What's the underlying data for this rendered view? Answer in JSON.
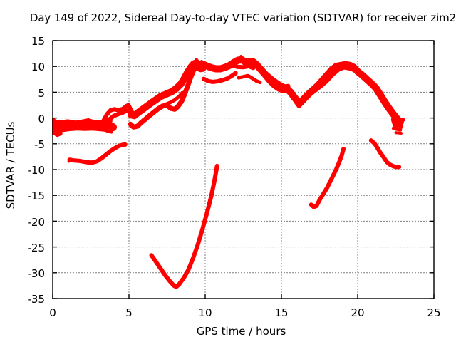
{
  "chart_data": {
    "type": "scatter",
    "title": "Day 149 of 2022, Sidereal Day-to-day VTEC variation (SDTVAR) for receiver zim2",
    "xlabel": "GPS time / hours",
    "ylabel": "SDTVAR / TECUs",
    "xlim": [
      0,
      25
    ],
    "ylim": [
      -35,
      15
    ],
    "xticks": [
      0,
      5,
      10,
      15,
      20,
      25
    ],
    "yticks": [
      15,
      10,
      5,
      0,
      -5,
      -10,
      -15,
      -20,
      -25,
      -30,
      -35
    ],
    "grid": true,
    "legend": "none",
    "point_color": "#ff0000",
    "grid_color": "#7f7f7f",
    "axis_color": "#000000",
    "series": [
      {
        "name": "band-core",
        "width": 11,
        "points": [
          [
            0,
            -1.4
          ],
          [
            0.5,
            -1.35
          ],
          [
            1,
            -1.5
          ],
          [
            1.5,
            -1.45
          ],
          [
            2,
            -1.5
          ],
          [
            2.35,
            -1.15
          ],
          [
            2.7,
            -1.5
          ],
          [
            3.1,
            -1.5
          ],
          [
            3.5,
            -1.35
          ],
          [
            3.8,
            -1.55
          ],
          [
            3.95,
            -1.8
          ]
        ]
      },
      {
        "name": "band-top-edge",
        "width": 5,
        "points": [
          [
            0,
            -0.55
          ],
          [
            0.5,
            -0.8
          ],
          [
            1,
            -0.6
          ],
          [
            1.5,
            -0.85
          ],
          [
            2,
            -0.6
          ],
          [
            2.35,
            -0.4
          ],
          [
            2.7,
            -0.75
          ],
          [
            3.1,
            -0.8
          ],
          [
            3.4,
            -0.6
          ],
          [
            3.6,
            -0.35
          ],
          [
            3.8,
            -0.6
          ]
        ]
      },
      {
        "name": "band-bottom-edge",
        "width": 5,
        "points": [
          [
            0.15,
            -2.5
          ],
          [
            0.6,
            -2.4
          ],
          [
            1.1,
            -2.2
          ],
          [
            1.6,
            -2.1
          ],
          [
            2.1,
            -2.15
          ],
          [
            2.6,
            -2.1
          ],
          [
            3.0,
            -2.2
          ],
          [
            3.4,
            -2.3
          ],
          [
            3.7,
            -2.6
          ],
          [
            3.85,
            -2.7
          ]
        ]
      },
      {
        "name": "left-edge-cluster",
        "width": 7,
        "points": [
          [
            0.04,
            -0.5
          ],
          [
            0.04,
            -2.8
          ]
        ]
      },
      {
        "name": "left-edge-drip",
        "width": 6,
        "points": [
          [
            0.12,
            -2.9
          ],
          [
            0.3,
            -3.25
          ],
          [
            0.5,
            -3.0
          ]
        ]
      },
      {
        "name": "branch-rise-a",
        "width": 6,
        "points": [
          [
            3.35,
            -0.4
          ],
          [
            3.55,
            0.7
          ],
          [
            3.8,
            1.5
          ],
          [
            4.05,
            1.7
          ],
          [
            4.3,
            1.5
          ],
          [
            4.6,
            1.75
          ],
          [
            4.85,
            2.35
          ],
          [
            4.97,
            2.5
          ],
          [
            5.1,
            1.7
          ],
          [
            5.25,
            0.85
          ],
          [
            5.35,
            0.5
          ]
        ]
      },
      {
        "name": "branch-rise-b",
        "width": 6,
        "points": [
          [
            3.5,
            -1.0
          ],
          [
            3.75,
            -0.2
          ],
          [
            4.0,
            0.4
          ],
          [
            4.3,
            0.75
          ],
          [
            4.6,
            1.05
          ],
          [
            4.85,
            1.45
          ],
          [
            5.02,
            1.3
          ]
        ]
      },
      {
        "name": "mid-strand-low",
        "width": 7,
        "points": [
          [
            5.1,
            -1.2
          ],
          [
            5.3,
            -1.75
          ],
          [
            5.55,
            -1.6
          ],
          [
            5.8,
            -0.9
          ],
          [
            6.05,
            -0.3
          ],
          [
            6.3,
            0.35
          ],
          [
            6.6,
            1.05
          ],
          [
            6.9,
            1.75
          ],
          [
            7.2,
            2.3
          ],
          [
            7.5,
            2.5
          ],
          [
            7.75,
            1.85
          ],
          [
            8.0,
            1.7
          ],
          [
            8.2,
            2.2
          ],
          [
            8.45,
            3.2
          ],
          [
            8.65,
            4.6
          ],
          [
            8.85,
            6.2
          ],
          [
            9.05,
            7.9
          ],
          [
            9.25,
            9.3
          ]
        ]
      },
      {
        "name": "main-spine",
        "width": 10,
        "points": [
          [
            5.15,
            0.6
          ],
          [
            5.35,
            0.45
          ],
          [
            5.6,
            1.05
          ],
          [
            5.9,
            1.7
          ],
          [
            6.2,
            2.35
          ],
          [
            6.5,
            3.0
          ],
          [
            6.8,
            3.6
          ],
          [
            7.1,
            4.2
          ],
          [
            7.45,
            4.65
          ],
          [
            7.8,
            5.1
          ],
          [
            8.1,
            5.7
          ],
          [
            8.4,
            6.6
          ],
          [
            8.6,
            7.5
          ],
          [
            8.85,
            8.9
          ],
          [
            9.05,
            9.8
          ],
          [
            9.25,
            10.5
          ],
          [
            9.45,
            10.7
          ],
          [
            9.6,
            10.2
          ],
          [
            9.75,
            10.0
          ],
          [
            9.9,
            10.35
          ],
          [
            10.1,
            10.1
          ],
          [
            10.4,
            9.75
          ],
          [
            10.7,
            9.55
          ],
          [
            11.0,
            9.55
          ],
          [
            11.3,
            9.8
          ],
          [
            11.6,
            10.2
          ],
          [
            11.9,
            10.8
          ],
          [
            12.15,
            11.2
          ],
          [
            12.4,
            11.3
          ],
          [
            12.65,
            10.8
          ],
          [
            12.9,
            11.0
          ],
          [
            13.1,
            11.0
          ],
          [
            13.35,
            10.4
          ],
          [
            13.65,
            9.4
          ],
          [
            13.95,
            8.4
          ],
          [
            14.25,
            7.3
          ],
          [
            14.55,
            6.4
          ],
          [
            14.85,
            5.8
          ],
          [
            15.1,
            5.5
          ],
          [
            15.35,
            5.7
          ],
          [
            15.6,
            5.0
          ],
          [
            15.85,
            4.0
          ],
          [
            16.1,
            3.1
          ],
          [
            16.25,
            3.0
          ],
          [
            16.5,
            3.8
          ],
          [
            16.8,
            4.7
          ],
          [
            17.1,
            5.5
          ],
          [
            17.4,
            6.3
          ],
          [
            17.7,
            7.3
          ],
          [
            18.0,
            8.3
          ],
          [
            18.3,
            9.3
          ],
          [
            18.6,
            10.0
          ],
          [
            18.9,
            10.2
          ],
          [
            19.2,
            10.35
          ],
          [
            19.5,
            10.2
          ],
          [
            19.75,
            9.8
          ],
          [
            20.0,
            9.0
          ],
          [
            20.3,
            8.3
          ],
          [
            20.6,
            7.5
          ],
          [
            20.9,
            6.7
          ],
          [
            21.2,
            5.8
          ],
          [
            21.5,
            4.4
          ],
          [
            21.8,
            3.0
          ],
          [
            22.1,
            1.7
          ],
          [
            22.35,
            0.7
          ],
          [
            22.6,
            -0.2
          ],
          [
            22.8,
            -0.8
          ]
        ]
      },
      {
        "name": "mid-strand-upper",
        "width": 5,
        "points": [
          [
            7.35,
            2.55
          ],
          [
            7.7,
            3.0
          ],
          [
            8.0,
            3.5
          ],
          [
            8.3,
            4.2
          ],
          [
            8.5,
            4.9
          ]
        ]
      },
      {
        "name": "peak1-under-strand",
        "width": 6,
        "points": [
          [
            8.9,
            8.0
          ],
          [
            9.1,
            9.0
          ],
          [
            9.3,
            9.6
          ],
          [
            9.5,
            9.5
          ],
          [
            9.7,
            9.3
          ],
          [
            9.9,
            9.4
          ]
        ]
      },
      {
        "name": "peak2-under-strand",
        "width": 6,
        "points": [
          [
            11.85,
            10.1
          ],
          [
            12.15,
            9.9
          ],
          [
            12.5,
            9.85
          ],
          [
            12.85,
            10.05
          ],
          [
            13.15,
            9.7
          ]
        ]
      },
      {
        "name": "saddle-low-strand",
        "width": 6,
        "points": [
          [
            9.9,
            7.6
          ],
          [
            10.2,
            7.15
          ],
          [
            10.5,
            7.0
          ],
          [
            10.8,
            7.1
          ],
          [
            11.1,
            7.3
          ],
          [
            11.4,
            7.6
          ],
          [
            11.7,
            8.1
          ],
          [
            12.0,
            8.7
          ]
        ]
      },
      {
        "name": "peak2-low-strand",
        "width": 5,
        "points": [
          [
            12.2,
            7.8
          ],
          [
            12.5,
            8.0
          ],
          [
            12.8,
            8.2
          ],
          [
            13.1,
            7.7
          ],
          [
            13.35,
            7.2
          ],
          [
            13.6,
            6.9
          ]
        ]
      },
      {
        "name": "descent-upper-strand",
        "width": 6,
        "points": [
          [
            13.3,
            10.3
          ],
          [
            13.7,
            9.4
          ],
          [
            14.1,
            8.4
          ],
          [
            14.5,
            7.4
          ],
          [
            14.9,
            6.6
          ],
          [
            15.2,
            6.1
          ],
          [
            15.45,
            6.2
          ]
        ]
      },
      {
        "name": "dip-extra",
        "width": 5,
        "points": [
          [
            15.9,
            3.2
          ],
          [
            16.15,
            2.2
          ],
          [
            16.4,
            3.0
          ]
        ]
      },
      {
        "name": "peak3-parallel-strand",
        "width": 6,
        "points": [
          [
            16.35,
            3.3
          ],
          [
            16.75,
            4.3
          ],
          [
            17.15,
            5.2
          ],
          [
            17.55,
            6.1
          ],
          [
            17.95,
            7.1
          ],
          [
            18.35,
            8.4
          ],
          [
            18.75,
            9.4
          ],
          [
            19.1,
            9.8
          ],
          [
            19.5,
            9.6
          ],
          [
            19.85,
            9.2
          ],
          [
            20.15,
            8.7
          ]
        ]
      },
      {
        "name": "final-descent-strand",
        "width": 6,
        "points": [
          [
            20.45,
            7.7
          ],
          [
            20.85,
            6.8
          ],
          [
            21.25,
            5.5
          ],
          [
            21.6,
            4.0
          ],
          [
            21.9,
            2.6
          ],
          [
            22.2,
            1.3
          ],
          [
            22.45,
            0.3
          ],
          [
            22.7,
            -1.0
          ],
          [
            22.85,
            -1.7
          ]
        ]
      },
      {
        "name": "peak1-spike",
        "width": 4,
        "points": [
          [
            9.38,
            10.8
          ],
          [
            9.43,
            11.35
          ]
        ]
      },
      {
        "name": "peak1-spike-b",
        "width": 4,
        "points": [
          [
            9.72,
            10.6
          ],
          [
            9.76,
            11.0
          ]
        ]
      },
      {
        "name": "peak2-spike",
        "width": 4,
        "points": [
          [
            12.3,
            11.4
          ],
          [
            12.35,
            11.95
          ]
        ]
      },
      {
        "name": "end-blob",
        "width": 7,
        "points": [
          [
            22.35,
            -0.3
          ],
          [
            22.45,
            -1.2
          ],
          [
            22.55,
            -2.0
          ]
        ]
      },
      {
        "name": "end-whisker-1",
        "width": 5,
        "points": [
          [
            22.4,
            -0.1
          ],
          [
            23.0,
            -0.35
          ]
        ]
      },
      {
        "name": "end-whisker-2",
        "width": 5,
        "points": [
          [
            22.4,
            -1.3
          ],
          [
            22.85,
            -1.45
          ]
        ]
      },
      {
        "name": "end-whisker-3",
        "width": 5,
        "points": [
          [
            22.35,
            -2.0
          ],
          [
            22.8,
            -2.3
          ]
        ]
      },
      {
        "name": "end-whisker-4",
        "width": 4,
        "points": [
          [
            22.5,
            -2.85
          ],
          [
            22.85,
            -2.95
          ]
        ]
      },
      {
        "name": "low-arc-early",
        "width": 6,
        "points": [
          [
            1.1,
            -8.1
          ],
          [
            1.4,
            -8.25
          ],
          [
            1.7,
            -8.3
          ],
          [
            2.0,
            -8.45
          ],
          [
            2.3,
            -8.6
          ],
          [
            2.6,
            -8.65
          ],
          [
            2.9,
            -8.4
          ],
          [
            3.2,
            -7.8
          ],
          [
            3.5,
            -7.1
          ],
          [
            3.8,
            -6.4
          ],
          [
            4.1,
            -5.8
          ],
          [
            4.35,
            -5.4
          ],
          [
            4.6,
            -5.2
          ],
          [
            4.75,
            -5.15
          ]
        ]
      },
      {
        "name": "low-arc-early-tick",
        "width": 4,
        "points": [
          [
            1.06,
            -8.4
          ],
          [
            1.18,
            -7.95
          ]
        ]
      },
      {
        "name": "deep-v-arc",
        "width": 6,
        "points": [
          [
            6.47,
            -26.6
          ],
          [
            6.8,
            -28.0
          ],
          [
            7.1,
            -29.3
          ],
          [
            7.4,
            -30.6
          ],
          [
            7.7,
            -31.7
          ],
          [
            7.95,
            -32.5
          ],
          [
            8.1,
            -32.75
          ],
          [
            8.3,
            -32.2
          ],
          [
            8.6,
            -31.0
          ],
          [
            8.9,
            -29.4
          ],
          [
            9.2,
            -27.2
          ],
          [
            9.5,
            -24.7
          ],
          [
            9.8,
            -21.8
          ],
          [
            10.1,
            -18.6
          ],
          [
            10.4,
            -15.1
          ],
          [
            10.6,
            -12.3
          ],
          [
            10.78,
            -9.3
          ]
        ]
      },
      {
        "name": "rise-arc-late",
        "width": 6,
        "points": [
          [
            16.95,
            -16.8
          ],
          [
            17.12,
            -17.25
          ],
          [
            17.3,
            -17.05
          ],
          [
            17.5,
            -15.9
          ],
          [
            17.75,
            -14.7
          ],
          [
            18.0,
            -13.5
          ],
          [
            18.2,
            -12.3
          ],
          [
            18.4,
            -11.1
          ],
          [
            18.6,
            -9.9
          ],
          [
            18.8,
            -8.5
          ],
          [
            18.95,
            -7.3
          ],
          [
            19.07,
            -6.0
          ]
        ]
      },
      {
        "name": "fall-arc-late",
        "width": 6,
        "points": [
          [
            20.88,
            -4.35
          ],
          [
            21.1,
            -4.9
          ],
          [
            21.3,
            -5.8
          ],
          [
            21.5,
            -6.8
          ],
          [
            21.7,
            -7.6
          ],
          [
            21.9,
            -8.5
          ],
          [
            22.1,
            -9.0
          ],
          [
            22.3,
            -9.3
          ],
          [
            22.5,
            -9.5
          ],
          [
            22.72,
            -9.5
          ]
        ]
      }
    ]
  }
}
